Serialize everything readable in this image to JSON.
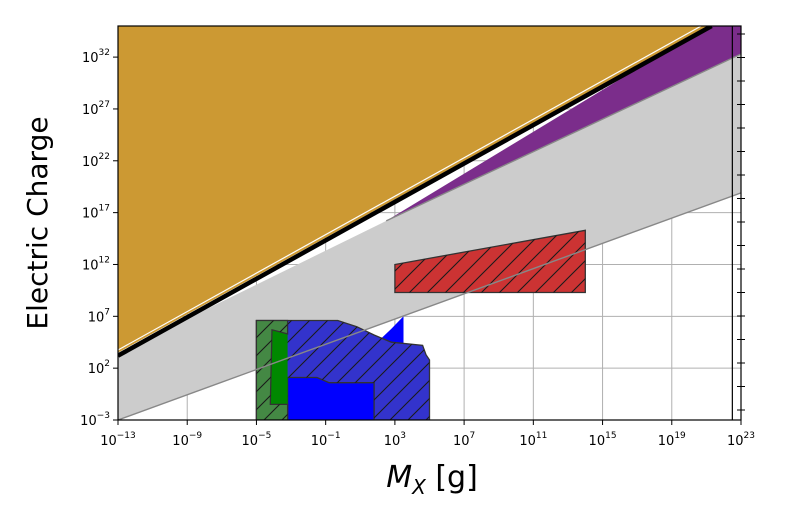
{
  "chart_data": {
    "type": "area",
    "title": "",
    "xlabel": "M_X [g]",
    "ylabel": "Electric Charge",
    "x_scale": "log",
    "y_scale": "log",
    "xlim_log10": [
      -13,
      23
    ],
    "ylim_log10": [
      -3,
      35
    ],
    "grid": true,
    "x_ticks": [
      {
        "base": "10",
        "exp": "−13"
      },
      {
        "base": "10",
        "exp": "−9"
      },
      {
        "base": "10",
        "exp": "−5"
      },
      {
        "base": "10",
        "exp": "−1"
      },
      {
        "base": "10",
        "exp": "3"
      },
      {
        "base": "10",
        "exp": "7"
      },
      {
        "base": "10",
        "exp": "11"
      },
      {
        "base": "10",
        "exp": "15"
      },
      {
        "base": "10",
        "exp": "19"
      },
      {
        "base": "10",
        "exp": "23"
      }
    ],
    "x_tick_values_log10": [
      -13,
      -9,
      -5,
      -1,
      3,
      7,
      11,
      15,
      19,
      23
    ],
    "y_ticks": [
      {
        "base": "10",
        "exp": "−3"
      },
      {
        "base": "10",
        "exp": "2"
      },
      {
        "base": "10",
        "exp": "7"
      },
      {
        "base": "10",
        "exp": "12"
      },
      {
        "base": "10",
        "exp": "17"
      },
      {
        "base": "10",
        "exp": "22"
      },
      {
        "base": "10",
        "exp": "27"
      },
      {
        "base": "10",
        "exp": "32"
      }
    ],
    "y_tick_values_log10": [
      -3,
      2,
      7,
      12,
      17,
      22,
      27,
      32
    ],
    "colors": {
      "gold": "#cc9933",
      "purple": "#7b2d8b",
      "gray": "#cccccc",
      "red": "#ff0000",
      "green": "#008800",
      "blue": "#0000ff",
      "edge": "#333333"
    },
    "regions": [
      {
        "id": "gold",
        "fill": "#cc9933",
        "points": [
          [
            -13,
            3.5
          ],
          [
            -13,
            35
          ],
          [
            21.1,
            35
          ]
        ]
      },
      {
        "id": "purple",
        "fill": "#7b2d8b",
        "points": [
          [
            2.5,
            16.2
          ],
          [
            21.1,
            35
          ],
          [
            23,
            35
          ],
          [
            23,
            32.3
          ]
        ]
      },
      {
        "id": "gray",
        "fill": "#cccccc",
        "points": [
          [
            -13,
            3.5
          ],
          [
            2.5,
            16.2
          ],
          [
            23,
            32.3
          ],
          [
            23,
            18.9
          ],
          [
            -13,
            -3
          ]
        ]
      },
      {
        "id": "red-solid",
        "fill": "#ff0000",
        "points": [
          [
            3,
            9.3
          ],
          [
            3,
            12
          ],
          [
            14,
            15.3
          ],
          [
            14,
            9.3
          ]
        ]
      },
      {
        "id": "red-hatched",
        "fill": "#cc3333",
        "hatch": true,
        "points": [
          [
            3,
            9.3
          ],
          [
            3,
            12
          ],
          [
            14,
            15.3
          ],
          [
            14,
            9.3
          ]
        ]
      },
      {
        "id": "blue-solid",
        "fill": "#0000ff",
        "points": [
          [
            -3.2,
            -3
          ],
          [
            -3.2,
            2.5
          ],
          [
            -1.3,
            3.2
          ],
          [
            0.5,
            4.2
          ],
          [
            2.1,
            4.7
          ],
          [
            2.8,
            5.8
          ],
          [
            3.5,
            7
          ],
          [
            3.5,
            -3
          ]
        ]
      },
      {
        "id": "blue-hatched",
        "fill": "#3333cc",
        "hatch": true,
        "points": [
          [
            -4.8,
            6.6
          ],
          [
            -0.3,
            6.6
          ],
          [
            0.8,
            6
          ],
          [
            1.8,
            5.2
          ],
          [
            2.8,
            4.5
          ],
          [
            4.6,
            4.2
          ],
          [
            4.8,
            3.3
          ],
          [
            5,
            2.8
          ],
          [
            5,
            -3
          ],
          [
            1.8,
            -3
          ],
          [
            1.8,
            0.6
          ],
          [
            -0.8,
            0.6
          ],
          [
            -1.5,
            1.1
          ],
          [
            -3.2,
            1.1
          ],
          [
            -3.2,
            -3
          ],
          [
            -5,
            -3
          ],
          [
            -5,
            6.6
          ]
        ]
      },
      {
        "id": "green-solid",
        "fill": "#008800",
        "points": [
          [
            -5,
            -3
          ],
          [
            -5,
            6.4
          ],
          [
            -4.1,
            5.7
          ],
          [
            -3.2,
            5.3
          ],
          [
            -3.2,
            -3
          ]
        ]
      },
      {
        "id": "green-hatched",
        "fill": "#448844",
        "hatch": true,
        "points": [
          [
            -5,
            -3
          ],
          [
            -5,
            6.6
          ],
          [
            -3.2,
            6.6
          ],
          [
            -3.2,
            5.3
          ],
          [
            -4.1,
            5.7
          ],
          [
            -4.2,
            -1.5
          ],
          [
            -3.2,
            -1.5
          ],
          [
            -3.2,
            -3
          ]
        ]
      }
    ],
    "lines": [
      {
        "id": "black-boundary",
        "color": "#000000",
        "width": 4.5,
        "points": [
          [
            -13,
            3.2
          ],
          [
            21.3,
            35
          ]
        ]
      },
      {
        "id": "white-inner-line",
        "color": "#ffffff",
        "width": 1.2,
        "points": [
          [
            -13,
            3.75
          ],
          [
            20.7,
            35
          ]
        ]
      },
      {
        "id": "gray-boundary-upper",
        "color": "#888888",
        "width": 1.4,
        "points": [
          [
            2.5,
            16.2
          ],
          [
            23,
            32.3
          ]
        ]
      },
      {
        "id": "gray-boundary-lower",
        "color": "#888888",
        "width": 1.4,
        "points": [
          [
            -13,
            -3
          ],
          [
            23,
            18.9
          ]
        ]
      }
    ]
  }
}
